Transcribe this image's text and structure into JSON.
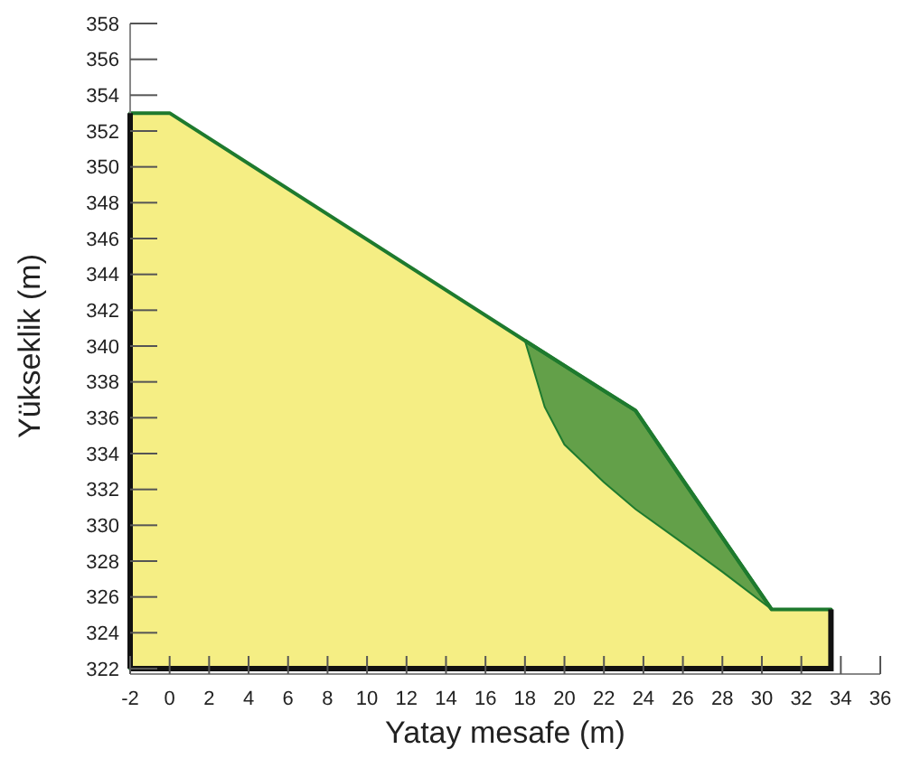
{
  "chart_data": {
    "type": "area",
    "xlabel": "Yatay mesafe (m)",
    "ylabel": "Yükseklik (m)",
    "xlim": [
      -2,
      36
    ],
    "ylim": [
      322,
      358
    ],
    "xticks": [
      -2,
      0,
      2,
      4,
      6,
      8,
      10,
      12,
      14,
      16,
      18,
      20,
      22,
      24,
      26,
      28,
      30,
      32,
      34,
      36
    ],
    "yticks": [
      322,
      324,
      326,
      328,
      330,
      332,
      334,
      336,
      338,
      340,
      342,
      344,
      346,
      348,
      350,
      352,
      354,
      356,
      358
    ],
    "grid": false,
    "series": [
      {
        "color": "#f5ee84",
        "x": [
          -2,
          0,
          18,
          23.6,
          30.5,
          33.5
        ],
        "values": [
          353,
          353,
          340.3,
          336.4,
          325.3,
          325.3
        ]
      },
      {
        "type": "line",
        "color": "#1e7a2e",
        "x": [
          18,
          19,
          20,
          22,
          23.6,
          26,
          28,
          30.5
        ],
        "values": [
          340.3,
          339.6,
          338.9,
          337.5,
          336.4,
          332.5,
          329.3,
          325.3
        ],
        "upper": [
          340.3,
          339.6,
          338.9,
          337.5,
          336.4,
          332.5,
          329.3,
          325.3
        ],
        "lower": [
          340.3,
          336.6,
          334.5,
          332.4,
          330.9,
          329.0,
          327.4,
          325.3
        ]
      }
    ]
  }
}
